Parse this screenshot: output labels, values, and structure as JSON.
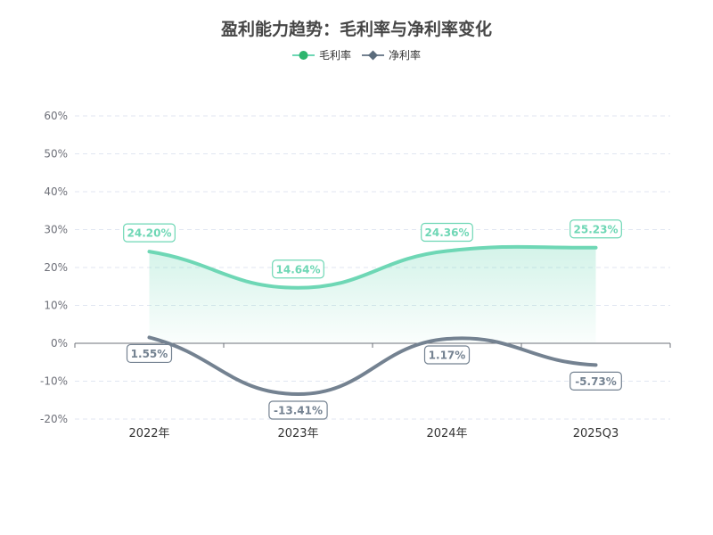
{
  "chart_data": {
    "type": "line",
    "title": "盈利能力趋势：毛利率与净利率变化",
    "categories": [
      "2022年",
      "2023年",
      "2024年",
      "2025Q3"
    ],
    "y_ticks": [
      "-20%",
      "-10%",
      "0%",
      "10%",
      "20%",
      "30%",
      "40%",
      "50%",
      "60%"
    ],
    "ylim": [
      -20,
      60
    ],
    "grid": true,
    "legend_position": "top",
    "series": [
      {
        "name": "毛利率",
        "values": [
          24.2,
          14.64,
          24.36,
          25.23
        ],
        "labels": [
          "24.20%",
          "14.64%",
          "24.36%",
          "25.23%"
        ],
        "color": "#6ed7b5",
        "legend_color": "#2eb56e",
        "marker": "circle",
        "area": true
      },
      {
        "name": "净利率",
        "values": [
          1.55,
          -13.41,
          1.17,
          -5.73
        ],
        "labels": [
          "1.55%",
          "-13.41%",
          "1.17%",
          "-5.73%"
        ],
        "color": "#748291",
        "legend_color": "#5a6b7b",
        "marker": "diamond",
        "area": false
      }
    ]
  }
}
